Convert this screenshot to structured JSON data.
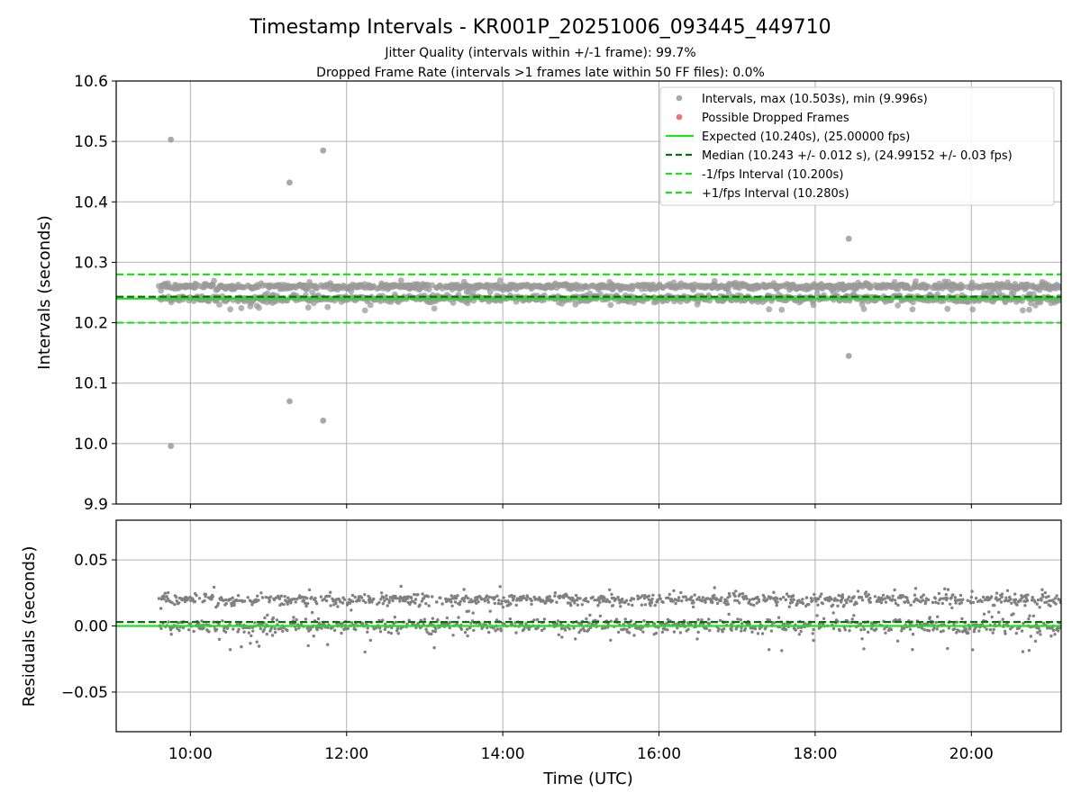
{
  "chart_data": {
    "type": "scatter",
    "title": "Timestamp Intervals - KR001P_20251006_093445_449710",
    "subtitle_lines": [
      "Jitter Quality (intervals within +/-1 frame): 99.7%",
      "Dropped Frame Rate (intervals >1 frames late within 50 FF files): 0.0%"
    ],
    "xlabel": "Time (UTC)",
    "xticks": [
      {
        "h": 10,
        "label": "10:00"
      },
      {
        "h": 12,
        "label": "12:00"
      },
      {
        "h": 14,
        "label": "14:00"
      },
      {
        "h": 16,
        "label": "16:00"
      },
      {
        "h": 18,
        "label": "18:00"
      },
      {
        "h": 20,
        "label": "20:00"
      }
    ],
    "xlim": [
      9.05,
      21.15
    ],
    "data_x_range": [
      9.6,
      21.15
    ],
    "top_panel": {
      "ylabel": "Intervals (seconds)",
      "ylim": [
        9.9,
        10.6
      ],
      "yticks": [
        {
          "v": 10.6,
          "label": "10.6"
        },
        {
          "v": 10.5,
          "label": "10.5"
        },
        {
          "v": 10.4,
          "label": "10.4"
        },
        {
          "v": 10.3,
          "label": "10.3"
        },
        {
          "v": 10.2,
          "label": "10.2"
        },
        {
          "v": 10.1,
          "label": "10.1"
        },
        {
          "v": 10.0,
          "label": "10.0"
        },
        {
          "v": 9.9,
          "label": "9.9"
        }
      ],
      "expected": 10.24,
      "median": 10.243,
      "lower_interval": 10.2,
      "upper_interval": 10.28,
      "outliers": [
        {
          "x": 9.75,
          "y": 10.503
        },
        {
          "x": 9.75,
          "y": 9.996
        },
        {
          "x": 11.27,
          "y": 10.432
        },
        {
          "x": 11.27,
          "y": 10.07
        },
        {
          "x": 11.7,
          "y": 10.485
        },
        {
          "x": 11.7,
          "y": 10.038
        },
        {
          "x": 18.43,
          "y": 10.339
        },
        {
          "x": 18.43,
          "y": 10.145
        }
      ],
      "legend": [
        {
          "kind": "dot",
          "color": "#a0a0a0",
          "label": "Intervals, max (10.503s), min (9.996s)"
        },
        {
          "kind": "dot",
          "color": "#f06060",
          "label": "Possible Dropped Frames"
        },
        {
          "kind": "solid",
          "color": "#22dd22",
          "label": "Expected (10.240s), (25.00000 fps)"
        },
        {
          "kind": "dash",
          "color": "#0a6e0a",
          "label": "Median (10.243 +/- 0.012 s), (24.99152 +/- 0.03 fps)"
        },
        {
          "kind": "dash",
          "color": "#22dd22",
          "label": "-1/fps Interval (10.200s)"
        },
        {
          "kind": "dash",
          "color": "#22dd22",
          "label": "+1/fps Interval (10.280s)"
        }
      ]
    },
    "bottom_panel": {
      "ylabel": "Residuals (seconds)",
      "ylim": [
        -0.08,
        0.08
      ],
      "yticks": [
        {
          "v": 0.05,
          "label": "0.05"
        },
        {
          "v": 0.0,
          "label": "0.00"
        },
        {
          "v": -0.05,
          "label": "−0.05"
        }
      ],
      "zero_line": 0.0,
      "median_residual": 0.003
    },
    "colors": {
      "points": "#808080",
      "points_top": "#9a9a9a",
      "expected": "#22dd22",
      "median": "#0a6e0a",
      "interval": "#22dd22",
      "grid": "#b0b0b0"
    }
  }
}
